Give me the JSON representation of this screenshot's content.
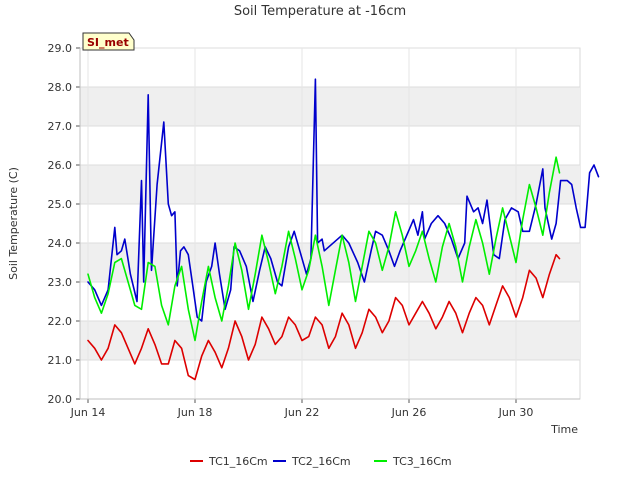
{
  "chart_data": {
    "type": "line",
    "title": "Soil Temperature at -16cm",
    "xlabel": "Time",
    "ylabel": "Soil Temperature (C)",
    "ylim": [
      20.0,
      29.0
    ],
    "y_ticks": [
      "20.0",
      "21.0",
      "22.0",
      "23.0",
      "24.0",
      "25.0",
      "26.0",
      "27.0",
      "28.0",
      "29.0"
    ],
    "x_start": "2023-06-14",
    "x_end": "2023-07-01T12:00",
    "x_ticks": [
      {
        "date": "2023-06-14",
        "label": "Jun 14"
      },
      {
        "date": "2023-06-18",
        "label": "Jun 18"
      },
      {
        "date": "2023-06-22",
        "label": "Jun 22"
      },
      {
        "date": "2023-06-26",
        "label": "Jun 26"
      },
      {
        "date": "2023-06-30",
        "label": "Jun 30"
      }
    ],
    "site_badge": "SI_met",
    "grid": true,
    "legend_position": "bottom",
    "series": [
      {
        "name": "TC1_16Cm",
        "color": "#dd0000",
        "points": [
          [
            "2023-06-14T00:00",
            21.5
          ],
          [
            "2023-06-14T06:00",
            21.3
          ],
          [
            "2023-06-14T12:00",
            21.0
          ],
          [
            "2023-06-14T18:00",
            21.3
          ],
          [
            "2023-06-15T00:00",
            21.9
          ],
          [
            "2023-06-15T06:00",
            21.7
          ],
          [
            "2023-06-15T12:00",
            21.3
          ],
          [
            "2023-06-15T18:00",
            20.9
          ],
          [
            "2023-06-16T00:00",
            21.3
          ],
          [
            "2023-06-16T06:00",
            21.8
          ],
          [
            "2023-06-16T12:00",
            21.4
          ],
          [
            "2023-06-16T18:00",
            20.9
          ],
          [
            "2023-06-17T00:00",
            20.9
          ],
          [
            "2023-06-17T06:00",
            21.5
          ],
          [
            "2023-06-17T12:00",
            21.3
          ],
          [
            "2023-06-17T18:00",
            20.6
          ],
          [
            "2023-06-18T00:00",
            20.5
          ],
          [
            "2023-06-18T06:00",
            21.1
          ],
          [
            "2023-06-18T12:00",
            21.5
          ],
          [
            "2023-06-18T18:00",
            21.2
          ],
          [
            "2023-06-19T00:00",
            20.8
          ],
          [
            "2023-06-19T06:00",
            21.3
          ],
          [
            "2023-06-19T12:00",
            22.0
          ],
          [
            "2023-06-19T18:00",
            21.6
          ],
          [
            "2023-06-20T00:00",
            21.0
          ],
          [
            "2023-06-20T06:00",
            21.4
          ],
          [
            "2023-06-20T12:00",
            22.1
          ],
          [
            "2023-06-20T18:00",
            21.8
          ],
          [
            "2023-06-21T00:00",
            21.4
          ],
          [
            "2023-06-21T06:00",
            21.6
          ],
          [
            "2023-06-21T12:00",
            22.1
          ],
          [
            "2023-06-21T18:00",
            21.9
          ],
          [
            "2023-06-22T00:00",
            21.5
          ],
          [
            "2023-06-22T06:00",
            21.6
          ],
          [
            "2023-06-22T12:00",
            22.1
          ],
          [
            "2023-06-22T18:00",
            21.9
          ],
          [
            "2023-06-23T00:00",
            21.3
          ],
          [
            "2023-06-23T06:00",
            21.6
          ],
          [
            "2023-06-23T12:00",
            22.2
          ],
          [
            "2023-06-23T18:00",
            21.9
          ],
          [
            "2023-06-24T00:00",
            21.3
          ],
          [
            "2023-06-24T06:00",
            21.7
          ],
          [
            "2023-06-24T12:00",
            22.3
          ],
          [
            "2023-06-24T18:00",
            22.1
          ],
          [
            "2023-06-25T00:00",
            21.7
          ],
          [
            "2023-06-25T06:00",
            22.0
          ],
          [
            "2023-06-25T12:00",
            22.6
          ],
          [
            "2023-06-25T18:00",
            22.4
          ],
          [
            "2023-06-26T00:00",
            21.9
          ],
          [
            "2023-06-26T06:00",
            22.2
          ],
          [
            "2023-06-26T12:00",
            22.5
          ],
          [
            "2023-06-26T18:00",
            22.2
          ],
          [
            "2023-06-27T00:00",
            21.8
          ],
          [
            "2023-06-27T06:00",
            22.1
          ],
          [
            "2023-06-27T12:00",
            22.5
          ],
          [
            "2023-06-27T18:00",
            22.2
          ],
          [
            "2023-06-28T00:00",
            21.7
          ],
          [
            "2023-06-28T06:00",
            22.2
          ],
          [
            "2023-06-28T12:00",
            22.6
          ],
          [
            "2023-06-28T18:00",
            22.4
          ],
          [
            "2023-06-29T00:00",
            21.9
          ],
          [
            "2023-06-29T06:00",
            22.4
          ],
          [
            "2023-06-29T12:00",
            22.9
          ],
          [
            "2023-06-29T18:00",
            22.6
          ],
          [
            "2023-06-30T00:00",
            22.1
          ],
          [
            "2023-06-30T06:00",
            22.6
          ],
          [
            "2023-06-30T12:00",
            23.3
          ],
          [
            "2023-06-30T18:00",
            23.1
          ],
          [
            "2023-07-01T00:00",
            22.6
          ],
          [
            "2023-07-01T06:00",
            23.2
          ],
          [
            "2023-07-01T12:00",
            23.7
          ],
          [
            "2023-07-01T15:00",
            23.6
          ]
        ]
      },
      {
        "name": "TC2_16Cm",
        "color": "#0000cc",
        "points": [
          [
            "2023-06-14T00:00",
            23.0
          ],
          [
            "2023-06-14T06:00",
            22.8
          ],
          [
            "2023-06-14T12:00",
            22.4
          ],
          [
            "2023-06-14T18:00",
            22.8
          ],
          [
            "2023-06-15T00:00",
            24.4
          ],
          [
            "2023-06-15T02:00",
            23.7
          ],
          [
            "2023-06-15T06:00",
            23.8
          ],
          [
            "2023-06-15T09:00",
            24.1
          ],
          [
            "2023-06-15T14:00",
            23.2
          ],
          [
            "2023-06-15T20:00",
            22.5
          ],
          [
            "2023-06-16T00:00",
            25.6
          ],
          [
            "2023-06-16T02:00",
            23.0
          ],
          [
            "2023-06-16T06:00",
            27.8
          ],
          [
            "2023-06-16T09:00",
            23.3
          ],
          [
            "2023-06-16T14:00",
            25.5
          ],
          [
            "2023-06-16T20:00",
            27.1
          ],
          [
            "2023-06-17T00:00",
            25.0
          ],
          [
            "2023-06-17T03:00",
            24.7
          ],
          [
            "2023-06-17T06:00",
            24.8
          ],
          [
            "2023-06-17T08:00",
            22.9
          ],
          [
            "2023-06-17T11:00",
            23.8
          ],
          [
            "2023-06-17T14:00",
            23.9
          ],
          [
            "2023-06-17T18:00",
            23.7
          ],
          [
            "2023-06-17T22:00",
            22.9
          ],
          [
            "2023-06-18T02:00",
            22.1
          ],
          [
            "2023-06-18T06:00",
            22.0
          ],
          [
            "2023-06-18T10:00",
            23.0
          ],
          [
            "2023-06-18T15:00",
            23.4
          ],
          [
            "2023-06-18T18:00",
            24.0
          ],
          [
            "2023-06-18T22:00",
            23.2
          ],
          [
            "2023-06-19T03:00",
            22.3
          ],
          [
            "2023-06-19T08:00",
            22.8
          ],
          [
            "2023-06-19T11:00",
            23.9
          ],
          [
            "2023-06-19T16:00",
            23.8
          ],
          [
            "2023-06-19T22:00",
            23.4
          ],
          [
            "2023-06-20T04:00",
            22.5
          ],
          [
            "2023-06-20T10:00",
            23.3
          ],
          [
            "2023-06-20T15:00",
            23.9
          ],
          [
            "2023-06-20T20:00",
            23.6
          ],
          [
            "2023-06-21T02:00",
            23.0
          ],
          [
            "2023-06-21T06:00",
            22.9
          ],
          [
            "2023-06-21T12:00",
            23.9
          ],
          [
            "2023-06-21T17:00",
            24.3
          ],
          [
            "2023-06-21T22:00",
            23.8
          ],
          [
            "2023-06-22T04:00",
            23.2
          ],
          [
            "2023-06-22T08:00",
            23.6
          ],
          [
            "2023-06-22T12:00",
            28.2
          ],
          [
            "2023-06-22T14:00",
            24.0
          ],
          [
            "2023-06-22T18:00",
            24.1
          ],
          [
            "2023-06-22T20:00",
            23.8
          ],
          [
            "2023-06-23T12:00",
            24.2
          ],
          [
            "2023-06-23T18:00",
            24.0
          ],
          [
            "2023-06-24T02:00",
            23.5
          ],
          [
            "2023-06-24T08:00",
            23.0
          ],
          [
            "2023-06-24T14:00",
            23.8
          ],
          [
            "2023-06-24T18:00",
            24.3
          ],
          [
            "2023-06-25T00:00",
            24.2
          ],
          [
            "2023-06-25T06:00",
            23.8
          ],
          [
            "2023-06-25T11:00",
            23.4
          ],
          [
            "2023-06-25T16:00",
            23.8
          ],
          [
            "2023-06-25T22:00",
            24.2
          ],
          [
            "2023-06-26T04:00",
            24.6
          ],
          [
            "2023-06-26T08:00",
            24.2
          ],
          [
            "2023-06-26T12:00",
            24.8
          ],
          [
            "2023-06-26T14:00",
            24.1
          ],
          [
            "2023-06-26T20:00",
            24.5
          ],
          [
            "2023-06-27T02:00",
            24.7
          ],
          [
            "2023-06-27T08:00",
            24.5
          ],
          [
            "2023-06-27T14:00",
            24.1
          ],
          [
            "2023-06-27T20:00",
            23.6
          ],
          [
            "2023-06-28T02:00",
            24.0
          ],
          [
            "2023-06-28T04:00",
            25.2
          ],
          [
            "2023-06-28T10:00",
            24.8
          ],
          [
            "2023-06-28T14:00",
            24.9
          ],
          [
            "2023-06-28T18:00",
            24.5
          ],
          [
            "2023-06-28T22:00",
            25.1
          ],
          [
            "2023-06-29T04:00",
            23.7
          ],
          [
            "2023-06-29T09:00",
            23.6
          ],
          [
            "2023-06-29T14:00",
            24.6
          ],
          [
            "2023-06-29T20:00",
            24.9
          ],
          [
            "2023-06-30T02:00",
            24.8
          ],
          [
            "2023-06-30T06:00",
            24.3
          ],
          [
            "2023-06-30T12:00",
            24.3
          ],
          [
            "2023-06-30T18:00",
            25.0
          ],
          [
            "2023-07-01T00:00",
            25.9
          ],
          [
            "2023-07-01T02:00",
            24.9
          ],
          [
            "2023-07-01T08:00",
            24.1
          ],
          [
            "2023-07-01T12:00",
            24.5
          ],
          [
            "2023-07-01T16:00",
            25.6
          ],
          [
            "2023-07-01T22:00",
            25.6
          ],
          [
            "2023-07-02T02:00",
            25.5
          ],
          [
            "2023-07-02T06:00",
            24.9
          ],
          [
            "2023-07-02T10:00",
            24.4
          ],
          [
            "2023-07-02T14:00",
            24.4
          ],
          [
            "2023-07-02T18:00",
            25.8
          ],
          [
            "2023-07-02T22:00",
            26.0
          ],
          [
            "2023-07-03T02:00",
            25.7
          ]
        ]
      },
      {
        "name": "TC3_16Cm",
        "color": "#00ee00",
        "points": [
          [
            "2023-06-14T00:00",
            23.2
          ],
          [
            "2023-06-14T06:00",
            22.6
          ],
          [
            "2023-06-14T12:00",
            22.2
          ],
          [
            "2023-06-14T18:00",
            22.7
          ],
          [
            "2023-06-15T00:00",
            23.5
          ],
          [
            "2023-06-15T06:00",
            23.6
          ],
          [
            "2023-06-15T12:00",
            23.0
          ],
          [
            "2023-06-15T18:00",
            22.4
          ],
          [
            "2023-06-16T00:00",
            22.3
          ],
          [
            "2023-06-16T06:00",
            23.5
          ],
          [
            "2023-06-16T12:00",
            23.4
          ],
          [
            "2023-06-16T18:00",
            22.4
          ],
          [
            "2023-06-17T00:00",
            21.9
          ],
          [
            "2023-06-17T06:00",
            22.9
          ],
          [
            "2023-06-17T12:00",
            23.4
          ],
          [
            "2023-06-17T18:00",
            22.3
          ],
          [
            "2023-06-18T00:00",
            21.5
          ],
          [
            "2023-06-18T06:00",
            22.5
          ],
          [
            "2023-06-18T12:00",
            23.4
          ],
          [
            "2023-06-18T18:00",
            22.6
          ],
          [
            "2023-06-19T00:00",
            22.0
          ],
          [
            "2023-06-19T06:00",
            22.9
          ],
          [
            "2023-06-19T12:00",
            24.0
          ],
          [
            "2023-06-19T18:00",
            23.3
          ],
          [
            "2023-06-20T00:00",
            22.3
          ],
          [
            "2023-06-20T06:00",
            23.2
          ],
          [
            "2023-06-20T12:00",
            24.2
          ],
          [
            "2023-06-20T18:00",
            23.5
          ],
          [
            "2023-06-21T00:00",
            22.7
          ],
          [
            "2023-06-21T06:00",
            23.4
          ],
          [
            "2023-06-21T12:00",
            24.3
          ],
          [
            "2023-06-21T18:00",
            23.6
          ],
          [
            "2023-06-22T00:00",
            22.8
          ],
          [
            "2023-06-22T06:00",
            23.3
          ],
          [
            "2023-06-22T12:00",
            24.2
          ],
          [
            "2023-06-22T18:00",
            23.4
          ],
          [
            "2023-06-23T00:00",
            22.4
          ],
          [
            "2023-06-23T06:00",
            23.3
          ],
          [
            "2023-06-23T12:00",
            24.2
          ],
          [
            "2023-06-23T18:00",
            23.5
          ],
          [
            "2023-06-24T00:00",
            22.5
          ],
          [
            "2023-06-24T06:00",
            23.4
          ],
          [
            "2023-06-24T12:00",
            24.3
          ],
          [
            "2023-06-24T18:00",
            24.0
          ],
          [
            "2023-06-25T00:00",
            23.3
          ],
          [
            "2023-06-25T06:00",
            23.9
          ],
          [
            "2023-06-25T12:00",
            24.8
          ],
          [
            "2023-06-25T18:00",
            24.2
          ],
          [
            "2023-06-26T00:00",
            23.4
          ],
          [
            "2023-06-26T06:00",
            23.8
          ],
          [
            "2023-06-26T12:00",
            24.3
          ],
          [
            "2023-06-26T18:00",
            23.6
          ],
          [
            "2023-06-27T00:00",
            23.0
          ],
          [
            "2023-06-27T06:00",
            23.9
          ],
          [
            "2023-06-27T12:00",
            24.5
          ],
          [
            "2023-06-27T18:00",
            23.9
          ],
          [
            "2023-06-28T00:00",
            23.0
          ],
          [
            "2023-06-28T06:00",
            23.9
          ],
          [
            "2023-06-28T12:00",
            24.6
          ],
          [
            "2023-06-28T18:00",
            24.0
          ],
          [
            "2023-06-29T00:00",
            23.2
          ],
          [
            "2023-06-29T06:00",
            24.1
          ],
          [
            "2023-06-29T12:00",
            24.9
          ],
          [
            "2023-06-29T18:00",
            24.2
          ],
          [
            "2023-06-30T00:00",
            23.5
          ],
          [
            "2023-06-30T06:00",
            24.6
          ],
          [
            "2023-06-30T12:00",
            25.5
          ],
          [
            "2023-06-30T18:00",
            24.9
          ],
          [
            "2023-07-01T00:00",
            24.2
          ],
          [
            "2023-07-01T06:00",
            25.3
          ],
          [
            "2023-07-01T12:00",
            26.2
          ],
          [
            "2023-07-01T15:00",
            25.8
          ]
        ]
      }
    ]
  }
}
